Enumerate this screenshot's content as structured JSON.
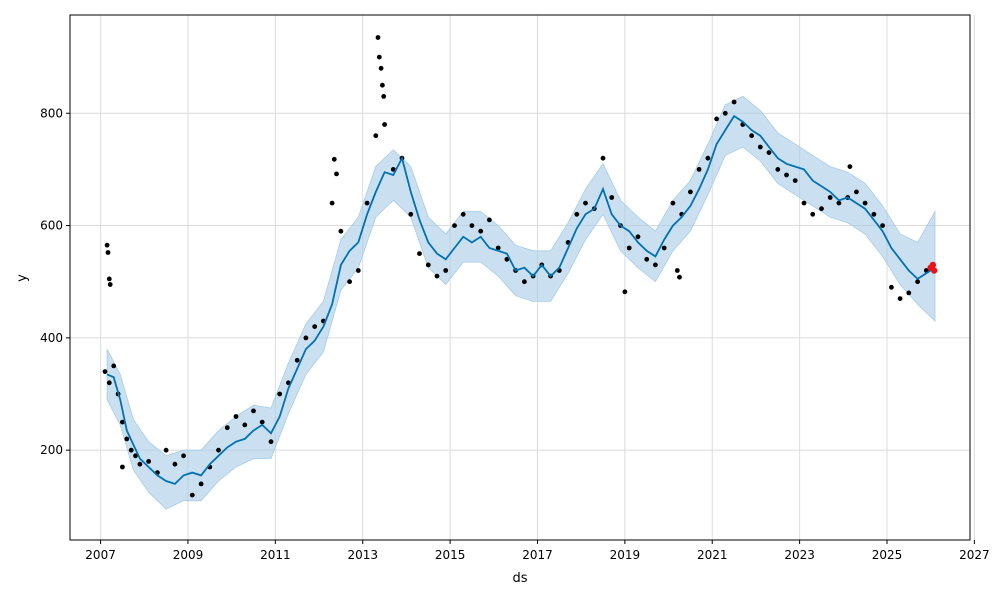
{
  "chart_data": {
    "type": "line",
    "title": "",
    "xlabel": "ds",
    "ylabel": "y",
    "xlim": [
      2006.3,
      2026.9
    ],
    "ylim": [
      40,
      975
    ],
    "x_ticks": [
      2007,
      2009,
      2011,
      2013,
      2015,
      2017,
      2019,
      2021,
      2023,
      2025,
      2027
    ],
    "y_ticks": [
      200,
      400,
      600,
      800
    ],
    "grid": true,
    "legend": "none",
    "colors": {
      "observed": "#000000",
      "forecast": "#0072B2",
      "interval": "#a6cce6",
      "highlight": "#e8141c"
    },
    "series": [
      {
        "kind": "forecast",
        "x": [
          2007.15,
          2007.3,
          2007.45,
          2007.6,
          2007.75,
          2007.9,
          2008.1,
          2008.3,
          2008.5,
          2008.7,
          2008.9,
          2009.1,
          2009.3,
          2009.5,
          2009.7,
          2009.9,
          2010.1,
          2010.3,
          2010.5,
          2010.7,
          2010.9,
          2011.1,
          2011.3,
          2011.5,
          2011.7,
          2011.9,
          2012.1,
          2012.3,
          2012.5,
          2012.7,
          2012.9,
          2013.1,
          2013.3,
          2013.5,
          2013.7,
          2013.9,
          2014.1,
          2014.3,
          2014.5,
          2014.7,
          2014.9,
          2015.1,
          2015.3,
          2015.5,
          2015.7,
          2015.9,
          2016.1,
          2016.3,
          2016.5,
          2016.7,
          2016.9,
          2017.1,
          2017.3,
          2017.5,
          2017.7,
          2017.9,
          2018.1,
          2018.3,
          2018.5,
          2018.7,
          2018.9,
          2019.1,
          2019.3,
          2019.5,
          2019.7,
          2019.9,
          2020.1,
          2020.3,
          2020.5,
          2020.7,
          2020.9,
          2021.1,
          2021.3,
          2021.5,
          2021.7,
          2021.9,
          2022.1,
          2022.3,
          2022.5,
          2022.7,
          2022.9,
          2023.1,
          2023.3,
          2023.5,
          2023.7,
          2023.9,
          2024.1,
          2024.3,
          2024.5,
          2024.7,
          2024.9,
          2025.1,
          2025.3,
          2025.5,
          2025.7,
          2025.9,
          2026.1
        ],
        "y": [
          335,
          330,
          290,
          235,
          210,
          185,
          170,
          155,
          145,
          140,
          155,
          160,
          155,
          175,
          190,
          205,
          215,
          220,
          235,
          245,
          230,
          260,
          310,
          345,
          380,
          395,
          420,
          460,
          530,
          555,
          570,
          620,
          660,
          695,
          690,
          720,
          660,
          610,
          570,
          550,
          540,
          560,
          580,
          570,
          580,
          560,
          555,
          550,
          520,
          525,
          510,
          530,
          510,
          525,
          560,
          595,
          620,
          630,
          665,
          620,
          600,
          590,
          570,
          555,
          545,
          575,
          600,
          615,
          635,
          665,
          700,
          745,
          770,
          795,
          785,
          770,
          760,
          740,
          720,
          710,
          705,
          700,
          680,
          670,
          660,
          645,
          650,
          640,
          630,
          610,
          590,
          560,
          540,
          520,
          505,
          515,
          525
        ]
      },
      {
        "kind": "interval",
        "x": [
          2007.15,
          2007.45,
          2007.75,
          2008.1,
          2008.5,
          2008.9,
          2009.3,
          2009.7,
          2010.1,
          2010.5,
          2010.9,
          2011.3,
          2011.7,
          2012.1,
          2012.5,
          2012.9,
          2013.3,
          2013.7,
          2014.1,
          2014.5,
          2014.9,
          2015.3,
          2015.7,
          2016.1,
          2016.5,
          2016.9,
          2017.3,
          2017.7,
          2018.1,
          2018.5,
          2018.9,
          2019.3,
          2019.7,
          2020.1,
          2020.5,
          2020.9,
          2021.3,
          2021.7,
          2022.1,
          2022.5,
          2022.9,
          2023.3,
          2023.7,
          2024.1,
          2024.5,
          2024.9,
          2025.3,
          2025.7,
          2026.1
        ],
        "lower": [
          290,
          245,
          165,
          125,
          95,
          110,
          110,
          145,
          170,
          185,
          185,
          265,
          335,
          375,
          485,
          525,
          615,
          645,
          615,
          525,
          495,
          535,
          535,
          510,
          475,
          465,
          465,
          515,
          575,
          620,
          555,
          525,
          500,
          555,
          590,
          655,
          725,
          740,
          715,
          675,
          655,
          635,
          615,
          605,
          585,
          545,
          495,
          460,
          430
        ],
        "upper": [
          380,
          335,
          255,
          215,
          190,
          200,
          200,
          235,
          260,
          280,
          275,
          355,
          425,
          465,
          575,
          615,
          705,
          735,
          705,
          615,
          585,
          625,
          625,
          600,
          565,
          555,
          555,
          605,
          665,
          710,
          645,
          615,
          590,
          645,
          680,
          745,
          815,
          830,
          805,
          765,
          745,
          725,
          705,
          695,
          675,
          635,
          585,
          570,
          625
        ]
      },
      {
        "kind": "observed",
        "x": [
          2007.1,
          2007.2,
          2007.3,
          2007.4,
          2007.5,
          2007.6,
          2007.7,
          2007.8,
          2007.9,
          2008.1,
          2008.3,
          2008.5,
          2008.7,
          2008.9,
          2009.1,
          2009.3,
          2009.5,
          2009.7,
          2009.9,
          2010.1,
          2010.3,
          2010.5,
          2010.7,
          2010.9,
          2011.1,
          2011.3,
          2011.5,
          2011.7,
          2011.9,
          2012.1,
          2012.3,
          2012.5,
          2012.7,
          2012.9,
          2013.1,
          2013.3,
          2013.5,
          2013.7,
          2013.9,
          2014.1,
          2014.3,
          2014.5,
          2014.7,
          2014.9,
          2015.1,
          2015.3,
          2015.5,
          2015.7,
          2015.9,
          2016.1,
          2016.3,
          2016.5,
          2016.7,
          2016.9,
          2017.1,
          2017.3,
          2017.5,
          2017.7,
          2017.9,
          2018.1,
          2018.3,
          2018.5,
          2018.7,
          2018.9,
          2019.1,
          2019.3,
          2019.5,
          2019.7,
          2019.9,
          2020.1,
          2020.3,
          2020.5,
          2020.7,
          2020.9,
          2021.1,
          2021.3,
          2021.5,
          2021.7,
          2021.9,
          2022.1,
          2022.3,
          2022.5,
          2022.7,
          2022.9,
          2023.1,
          2023.3,
          2023.5,
          2023.7,
          2023.9,
          2024.1,
          2024.3,
          2024.5,
          2024.7,
          2024.9,
          2025.1,
          2025.3,
          2025.5,
          2025.7,
          2025.9
        ],
        "y": [
          340,
          320,
          350,
          300,
          250,
          220,
          200,
          190,
          175,
          180,
          160,
          200,
          175,
          190,
          120,
          140,
          170,
          200,
          240,
          260,
          245,
          270,
          250,
          215,
          300,
          320,
          360,
          400,
          420,
          430,
          640,
          590,
          500,
          520,
          640,
          760,
          780,
          700,
          720,
          620,
          550,
          530,
          510,
          520,
          600,
          620,
          600,
          590,
          610,
          560,
          540,
          520,
          500,
          510,
          530,
          510,
          520,
          570,
          620,
          640,
          630,
          720,
          650,
          600,
          560,
          580,
          540,
          530,
          560,
          640,
          620,
          660,
          700,
          720,
          790,
          800,
          820,
          780,
          760,
          740,
          730,
          700,
          690,
          680,
          640,
          620,
          630,
          650,
          640,
          650,
          660,
          640,
          620,
          600,
          490,
          470,
          480,
          500,
          520
        ]
      },
      {
        "kind": "observed-outliers",
        "x": [
          2007.15,
          2007.17,
          2007.2,
          2007.22,
          2007.5,
          2012.35,
          2012.4,
          2013.35,
          2013.38,
          2013.42,
          2013.45,
          2013.48,
          2019.0,
          2020.2,
          2020.25,
          2024.15
        ],
        "y": [
          565,
          552,
          505,
          495,
          170,
          718,
          692,
          935,
          900,
          880,
          850,
          830,
          482,
          520,
          508,
          705
        ]
      },
      {
        "kind": "forecast-highlight",
        "x": [
          2026.0,
          2026.05,
          2026.08
        ],
        "y": [
          525,
          530,
          520
        ]
      }
    ]
  }
}
